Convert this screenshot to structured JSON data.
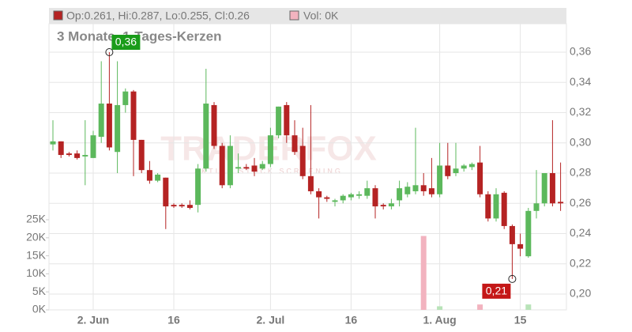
{
  "chart_data": {
    "type": "candlestick",
    "title": "3 Monate, 1-Tages-Kerzen",
    "legend_ohlc": "Op:0.261, Hi:0.287, Lo:0.255, Cl:0.26",
    "legend_volume": "Vol: 0K",
    "watermark": "TRADERFOX",
    "watermark_sub": "AKTIEN STOCK SCREENING",
    "up_color": "#5cb85c",
    "down_color": "#b52323",
    "volume_up_color": "#b8e3b8",
    "volume_down_color": "#f2b3bf",
    "grid": true,
    "categories": [
      null,
      null,
      null,
      null,
      null,
      "2. Jun",
      null,
      null,
      null,
      null,
      null,
      null,
      null,
      null,
      null,
      "16",
      null,
      null,
      null,
      null,
      null,
      null,
      null,
      null,
      null,
      null,
      null,
      "2. Jul",
      null,
      null,
      null,
      null,
      null,
      null,
      null,
      null,
      null,
      "16",
      null,
      null,
      null,
      null,
      null,
      null,
      null,
      null,
      null,
      null,
      "1. Aug",
      null,
      null,
      null,
      null,
      null,
      null,
      null,
      null,
      null,
      "15",
      null,
      null,
      null,
      null,
      null
    ],
    "open": [
      0.299,
      0.301,
      0.293,
      0.293,
      0.291,
      0.29,
      0.304,
      0.326,
      0.294,
      0.325,
      0.334,
      0.302,
      0.282,
      0.275,
      0.277,
      0.259,
      0.259,
      0.259,
      0.259,
      0.283,
      0.325,
      0.298,
      0.272,
      0.283,
      0.284,
      0.285,
      0.283,
      0.286,
      0.305,
      0.325,
      0.305,
      0.298,
      0.278,
      0.268,
      0.264,
      0.261,
      0.262,
      0.264,
      0.265,
      0.265,
      0.27,
      0.259,
      0.258,
      0.262,
      0.266,
      0.268,
      0.272,
      0.27,
      0.266,
      0.285,
      0.28,
      0.283,
      0.284,
      0.287,
      0.266,
      0.25,
      0.267,
      0.245,
      0.233,
      0.225,
      0.255,
      0.26,
      0.28,
      0.261
    ],
    "high": [
      0.315,
      0.301,
      0.294,
      0.295,
      0.315,
      0.308,
      0.354,
      0.36,
      0.354,
      0.336,
      0.335,
      0.302,
      0.288,
      0.28,
      0.277,
      0.26,
      0.26,
      0.262,
      0.286,
      0.349,
      0.327,
      0.3,
      0.305,
      0.293,
      0.286,
      0.29,
      0.288,
      0.31,
      0.324,
      0.327,
      0.315,
      0.31,
      0.325,
      0.27,
      0.265,
      0.263,
      0.266,
      0.267,
      0.268,
      0.275,
      0.272,
      0.26,
      0.263,
      0.275,
      0.274,
      0.31,
      0.28,
      0.29,
      0.3,
      0.3,
      0.3,
      0.286,
      0.287,
      0.298,
      0.268,
      0.27,
      0.268,
      0.246,
      0.24,
      0.257,
      0.282,
      0.28,
      0.315,
      0.287
    ],
    "low": [
      0.295,
      0.29,
      0.291,
      0.289,
      0.272,
      0.29,
      0.3,
      0.295,
      0.28,
      0.32,
      0.278,
      0.28,
      0.273,
      0.274,
      0.243,
      0.257,
      0.257,
      0.256,
      0.254,
      0.281,
      0.296,
      0.27,
      0.27,
      0.28,
      0.282,
      0.278,
      0.282,
      0.284,
      0.303,
      0.3,
      0.292,
      0.276,
      0.266,
      0.25,
      0.261,
      0.258,
      0.26,
      0.262,
      0.263,
      0.263,
      0.25,
      0.256,
      0.256,
      0.258,
      0.264,
      0.266,
      0.265,
      0.264,
      0.264,
      0.276,
      0.278,
      0.281,
      0.282,
      0.264,
      0.248,
      0.248,
      0.243,
      0.21,
      0.225,
      0.224,
      0.25,
      0.258,
      0.258,
      0.255
    ],
    "close": [
      0.301,
      0.292,
      0.292,
      0.29,
      0.292,
      0.305,
      0.326,
      0.297,
      0.325,
      0.334,
      0.302,
      0.282,
      0.275,
      0.279,
      0.258,
      0.258,
      0.258,
      0.257,
      0.283,
      0.326,
      0.298,
      0.272,
      0.298,
      0.284,
      0.283,
      0.281,
      0.286,
      0.305,
      0.324,
      0.305,
      0.294,
      0.278,
      0.268,
      0.264,
      0.263,
      0.262,
      0.265,
      0.266,
      0.266,
      0.27,
      0.258,
      0.258,
      0.26,
      0.27,
      0.271,
      0.272,
      0.268,
      0.266,
      0.285,
      0.278,
      0.283,
      0.285,
      0.286,
      0.266,
      0.25,
      0.266,
      0.245,
      0.233,
      0.23,
      0.255,
      0.26,
      0.28,
      0.26,
      0.26
    ],
    "volume": [
      0,
      0,
      0,
      0,
      0,
      0,
      0,
      0,
      0,
      0,
      0,
      0,
      0,
      0,
      0,
      0,
      0,
      0,
      0,
      0,
      0,
      0,
      0,
      0,
      0,
      0,
      0,
      0,
      0,
      0,
      0,
      0,
      0,
      0,
      0,
      0,
      0,
      0,
      0,
      0,
      0,
      0,
      0,
      0,
      0,
      0,
      20500,
      0,
      1000,
      0,
      0,
      0,
      0,
      1500,
      0,
      0,
      0,
      0,
      0,
      1500,
      0,
      0,
      0,
      0
    ],
    "ylim": [
      0.19,
      0.375
    ],
    "yticks": [
      {
        "value": 0.2,
        "label": "0,20"
      },
      {
        "value": 0.22,
        "label": "0,22"
      },
      {
        "value": 0.24,
        "label": "0,24"
      },
      {
        "value": 0.26,
        "label": "0,26"
      },
      {
        "value": 0.28,
        "label": "0,28"
      },
      {
        "value": 0.3,
        "label": "0,30"
      },
      {
        "value": 0.32,
        "label": "0,32"
      },
      {
        "value": 0.34,
        "label": "0,34"
      },
      {
        "value": 0.36,
        "label": "0,36"
      }
    ],
    "volume_lim": [
      0,
      25000
    ],
    "volume_ticks": [
      {
        "value": 0,
        "label": "0K"
      },
      {
        "value": 5000,
        "label": "5K"
      },
      {
        "value": 10000,
        "label": "10K"
      },
      {
        "value": 15000,
        "label": "15K"
      },
      {
        "value": 20000,
        "label": "20K"
      },
      {
        "value": 25000,
        "label": "25K"
      }
    ],
    "annotations": [
      {
        "value": 0.36,
        "label": "0,36",
        "kind": "high"
      },
      {
        "value": 0.21,
        "label": "0,21",
        "kind": "low"
      }
    ]
  }
}
